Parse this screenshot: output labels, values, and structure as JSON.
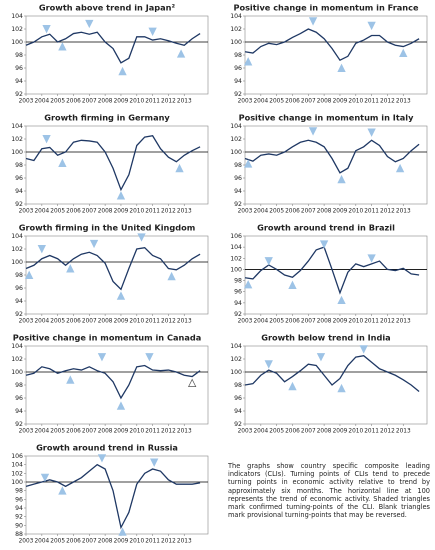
{
  "chart_data": [
    {
      "type": "line",
      "title": "Growth above trend in Japan²",
      "color": "#1f3864",
      "hline": 100,
      "x": [
        2003,
        2003.5,
        2004,
        2004.5,
        2005,
        2005.5,
        2006,
        2006.5,
        2007,
        2007.5,
        2008,
        2008.5,
        2009,
        2009.5,
        2010,
        2010.5,
        2011,
        2011.5,
        2012,
        2012.5,
        2013,
        2013.5,
        2014
      ],
      "values": [
        99.5,
        100,
        100.8,
        101.2,
        100,
        100.5,
        101.3,
        101.5,
        101.2,
        101.5,
        100,
        99,
        96.8,
        97.5,
        100.8,
        100.8,
        100.3,
        100.5,
        100.2,
        99.8,
        99.5,
        100.5,
        101.3
      ],
      "markers": [
        {
          "x": 2004.3,
          "y": 102,
          "kind": "peak"
        },
        {
          "x": 2005.3,
          "y": 99.3,
          "kind": "trough"
        },
        {
          "x": 2007,
          "y": 102.8,
          "kind": "peak"
        },
        {
          "x": 2009.1,
          "y": 95.5,
          "kind": "trough"
        },
        {
          "x": 2011,
          "y": 101.6,
          "kind": "peak"
        },
        {
          "x": 2012.8,
          "y": 98.2,
          "kind": "trough"
        }
      ],
      "xlim": [
        2003,
        2014.5
      ],
      "xticks": [
        2003,
        2004,
        2005,
        2006,
        2007,
        2008,
        2009,
        2010,
        2011,
        2012,
        2013
      ],
      "ylim": [
        92,
        104
      ],
      "yticks": [
        92,
        94,
        96,
        98,
        100,
        102,
        104
      ]
    },
    {
      "type": "line",
      "title": "Positive change in momentum in France",
      "color": "#1f3864",
      "hline": 100,
      "x": [
        2003,
        2003.5,
        2004,
        2004.5,
        2005,
        2005.5,
        2006,
        2006.5,
        2007,
        2007.5,
        2008,
        2008.5,
        2009,
        2009.5,
        2010,
        2010.5,
        2011,
        2011.5,
        2012,
        2012.5,
        2013,
        2013.5,
        2014
      ],
      "values": [
        98.5,
        98.3,
        99.3,
        99.8,
        99.6,
        100,
        100.7,
        101.3,
        102,
        101.5,
        100.5,
        99,
        97.2,
        97.8,
        99.8,
        100.3,
        101,
        101,
        100,
        99.5,
        99.3,
        99.8,
        100.5
      ],
      "markers": [
        {
          "x": 2003.2,
          "y": 97,
          "kind": "trough"
        },
        {
          "x": 2007.3,
          "y": 103.2,
          "kind": "peak"
        },
        {
          "x": 2009.1,
          "y": 96,
          "kind": "trough"
        },
        {
          "x": 2011,
          "y": 102.5,
          "kind": "peak"
        },
        {
          "x": 2013,
          "y": 98.3,
          "kind": "trough"
        }
      ],
      "xlim": [
        2003,
        2014.5
      ],
      "xticks": [
        2003,
        2004,
        2005,
        2006,
        2007,
        2008,
        2009,
        2010,
        2011,
        2012,
        2013
      ],
      "ylim": [
        92,
        104
      ],
      "yticks": [
        92,
        94,
        96,
        98,
        100,
        102,
        104
      ]
    },
    {
      "type": "line",
      "title": "Growth firming in Germany",
      "color": "#1f3864",
      "hline": 100,
      "x": [
        2003,
        2003.5,
        2004,
        2004.5,
        2005,
        2005.5,
        2006,
        2006.5,
        2007,
        2007.5,
        2008,
        2008.5,
        2009,
        2009.5,
        2010,
        2010.5,
        2011,
        2011.5,
        2012,
        2012.5,
        2013,
        2013.5,
        2014
      ],
      "values": [
        99,
        98.7,
        100.5,
        100.7,
        99.5,
        100,
        101.5,
        101.8,
        101.7,
        101.5,
        100,
        97.5,
        94.2,
        96.5,
        101,
        102.3,
        102.5,
        100.5,
        99.2,
        98.5,
        99.5,
        100.2,
        100.8
      ],
      "markers": [
        {
          "x": 2004.3,
          "y": 102,
          "kind": "peak"
        },
        {
          "x": 2005.3,
          "y": 98.3,
          "kind": "trough"
        },
        {
          "x": 2009,
          "y": 93.3,
          "kind": "trough"
        },
        {
          "x": 2012.7,
          "y": 97.5,
          "kind": "trough"
        }
      ],
      "xlim": [
        2003,
        2014.5
      ],
      "xticks": [
        2003,
        2004,
        2005,
        2006,
        2007,
        2008,
        2009,
        2010,
        2011,
        2012,
        2013
      ],
      "ylim": [
        92,
        104
      ],
      "yticks": [
        92,
        94,
        96,
        98,
        100,
        102,
        104
      ]
    },
    {
      "type": "line",
      "title": "Positive change in momentum in Italy",
      "color": "#1f3864",
      "hline": 100,
      "x": [
        2003,
        2003.5,
        2004,
        2004.5,
        2005,
        2005.5,
        2006,
        2006.5,
        2007,
        2007.5,
        2008,
        2008.5,
        2009,
        2009.5,
        2010,
        2010.5,
        2011,
        2011.5,
        2012,
        2012.5,
        2013,
        2013.5,
        2014
      ],
      "values": [
        99,
        98.6,
        99.5,
        99.7,
        99.5,
        100,
        100.8,
        101.5,
        101.8,
        101.5,
        100.8,
        99,
        96.8,
        97.5,
        100.2,
        100.8,
        101.8,
        101,
        99.3,
        98.5,
        99,
        100.2,
        101.2
      ],
      "markers": [
        {
          "x": 2003.2,
          "y": 98.2,
          "kind": "trough"
        },
        {
          "x": 2007.3,
          "y": 103.2,
          "kind": "peak"
        },
        {
          "x": 2009.1,
          "y": 95.8,
          "kind": "trough"
        },
        {
          "x": 2011,
          "y": 103,
          "kind": "peak"
        },
        {
          "x": 2012.8,
          "y": 97.5,
          "kind": "trough"
        }
      ],
      "xlim": [
        2003,
        2014.5
      ],
      "xticks": [
        2003,
        2004,
        2005,
        2006,
        2007,
        2008,
        2009,
        2010,
        2011,
        2012,
        2013
      ],
      "ylim": [
        92,
        104
      ],
      "yticks": [
        92,
        94,
        96,
        98,
        100,
        102,
        104
      ]
    },
    {
      "type": "line",
      "title": "Growth firming in the United Kingdom",
      "color": "#1f3864",
      "hline": 100,
      "x": [
        2003,
        2003.5,
        2004,
        2004.5,
        2005,
        2005.5,
        2006,
        2006.5,
        2007,
        2007.5,
        2008,
        2008.5,
        2009,
        2009.5,
        2010,
        2010.5,
        2011,
        2011.5,
        2012,
        2012.5,
        2013,
        2013.5,
        2014
      ],
      "values": [
        99,
        99.5,
        100.5,
        101,
        100.5,
        99.5,
        100.5,
        101.2,
        101.5,
        101,
        99.8,
        97,
        95.8,
        99,
        102,
        102.2,
        101,
        100.5,
        99,
        98.8,
        99.5,
        100.5,
        101.2
      ],
      "markers": [
        {
          "x": 2003.2,
          "y": 98,
          "kind": "trough"
        },
        {
          "x": 2004,
          "y": 102,
          "kind": "peak"
        },
        {
          "x": 2005.8,
          "y": 99,
          "kind": "trough"
        },
        {
          "x": 2007.3,
          "y": 102.8,
          "kind": "peak"
        },
        {
          "x": 2009,
          "y": 94.8,
          "kind": "trough"
        },
        {
          "x": 2010.3,
          "y": 103.8,
          "kind": "peak"
        },
        {
          "x": 2012.2,
          "y": 97.8,
          "kind": "trough"
        }
      ],
      "xlim": [
        2003,
        2014.5
      ],
      "xticks": [
        2003,
        2004,
        2005,
        2006,
        2007,
        2008,
        2009,
        2010,
        2011,
        2012,
        2013
      ],
      "ylim": [
        92,
        104
      ],
      "yticks": [
        92,
        94,
        96,
        98,
        100,
        102,
        104
      ]
    },
    {
      "type": "line",
      "title": "Growth around trend in Brazil",
      "color": "#1f3864",
      "hline": 100,
      "x": [
        2003,
        2003.5,
        2004,
        2004.5,
        2005,
        2005.5,
        2006,
        2006.5,
        2007,
        2007.5,
        2008,
        2008.5,
        2009,
        2009.5,
        2010,
        2010.5,
        2011,
        2011.5,
        2012,
        2012.5,
        2013,
        2013.5,
        2014
      ],
      "values": [
        98.5,
        98.3,
        99.8,
        100.8,
        100,
        99,
        98.6,
        99.8,
        101.5,
        103.5,
        104,
        100,
        95.8,
        99.5,
        101,
        100.5,
        101,
        101.5,
        100,
        99.8,
        100.2,
        99.2,
        99
      ],
      "markers": [
        {
          "x": 2003.2,
          "y": 97.3,
          "kind": "trough"
        },
        {
          "x": 2004.5,
          "y": 101.5,
          "kind": "peak"
        },
        {
          "x": 2006,
          "y": 97.2,
          "kind": "trough"
        },
        {
          "x": 2008,
          "y": 104.5,
          "kind": "peak"
        },
        {
          "x": 2009.1,
          "y": 94.5,
          "kind": "trough"
        },
        {
          "x": 2011,
          "y": 102,
          "kind": "peak"
        }
      ],
      "xlim": [
        2003,
        2014.5
      ],
      "xticks": [
        2003,
        2004,
        2005,
        2006,
        2007,
        2008,
        2009,
        2010,
        2011,
        2012,
        2013
      ],
      "ylim": [
        92,
        106
      ],
      "yticks": [
        92,
        94,
        96,
        98,
        100,
        102,
        104,
        106
      ]
    },
    {
      "type": "line",
      "title": "Positive change in momentum in Canada",
      "color": "#1f3864",
      "hline": 100,
      "x": [
        2003,
        2003.5,
        2004,
        2004.5,
        2005,
        2005.5,
        2006,
        2006.5,
        2007,
        2007.5,
        2008,
        2008.5,
        2009,
        2009.5,
        2010,
        2010.5,
        2011,
        2011.5,
        2012,
        2012.5,
        2013,
        2013.5,
        2014
      ],
      "values": [
        99.5,
        99.8,
        100.8,
        100.5,
        99.8,
        100.2,
        100.5,
        100.3,
        100.8,
        100.2,
        99.8,
        98.5,
        96,
        98,
        100.8,
        101,
        100.3,
        100.2,
        100.3,
        100,
        99.5,
        99.3,
        100.2
      ],
      "markers": [
        {
          "x": 2005.8,
          "y": 98.8,
          "kind": "trough"
        },
        {
          "x": 2007.8,
          "y": 102.3,
          "kind": "peak"
        },
        {
          "x": 2009,
          "y": 94.8,
          "kind": "trough"
        },
        {
          "x": 2010.8,
          "y": 102.3,
          "kind": "peak"
        },
        {
          "x": 2013.5,
          "y": 98.3,
          "kind": "trough",
          "provisional": true
        }
      ],
      "xlim": [
        2003,
        2014.5
      ],
      "xticks": [
        2003,
        2004,
        2005,
        2006,
        2007,
        2008,
        2009,
        2010,
        2011,
        2012,
        2013
      ],
      "ylim": [
        92,
        104
      ],
      "yticks": [
        92,
        94,
        96,
        98,
        100,
        102,
        104
      ]
    },
    {
      "type": "line",
      "title": "Growth below trend in India",
      "color": "#1f3864",
      "hline": 100,
      "x": [
        2003,
        2003.5,
        2004,
        2004.5,
        2005,
        2005.5,
        2006,
        2006.5,
        2007,
        2007.5,
        2008,
        2008.5,
        2009,
        2009.5,
        2010,
        2010.5,
        2011,
        2011.5,
        2012,
        2012.5,
        2013,
        2013.5,
        2014
      ],
      "values": [
        98,
        98.2,
        99.5,
        100.3,
        99.8,
        98.5,
        99.3,
        100.2,
        101.2,
        101,
        99.5,
        98,
        99,
        101,
        102.3,
        102.5,
        101.5,
        100.5,
        100,
        99.5,
        98.8,
        98,
        97
      ],
      "markers": [
        {
          "x": 2004.5,
          "y": 101.2,
          "kind": "peak"
        },
        {
          "x": 2006,
          "y": 97.8,
          "kind": "trough"
        },
        {
          "x": 2007.8,
          "y": 102.3,
          "kind": "peak"
        },
        {
          "x": 2009.1,
          "y": 97.5,
          "kind": "trough"
        },
        {
          "x": 2010.5,
          "y": 103.5,
          "kind": "peak"
        }
      ],
      "xlim": [
        2003,
        2014.5
      ],
      "xticks": [
        2003,
        2004,
        2005,
        2006,
        2007,
        2008,
        2009,
        2010,
        2011,
        2012,
        2013
      ],
      "ylim": [
        92,
        104
      ],
      "yticks": [
        92,
        94,
        96,
        98,
        100,
        102,
        104
      ]
    },
    {
      "type": "line",
      "title": "Growth around trend in Russia",
      "color": "#1f3864",
      "hline": 100,
      "x": [
        2003,
        2003.5,
        2004,
        2004.5,
        2005,
        2005.5,
        2006,
        2006.5,
        2007,
        2007.5,
        2008,
        2008.5,
        2009,
        2009.5,
        2010,
        2010.5,
        2011,
        2011.5,
        2012,
        2012.5,
        2013,
        2013.5,
        2014
      ],
      "values": [
        99,
        99.5,
        100,
        100.5,
        100,
        99,
        100,
        101,
        102.5,
        104,
        103,
        98,
        89.5,
        93,
        99.5,
        102,
        103,
        102.5,
        100.5,
        99.5,
        99.5,
        99.5,
        99.8
      ],
      "markers": [
        {
          "x": 2004.2,
          "y": 101,
          "kind": "peak"
        },
        {
          "x": 2005.3,
          "y": 98,
          "kind": "trough"
        },
        {
          "x": 2007.8,
          "y": 105.5,
          "kind": "peak"
        },
        {
          "x": 2009.1,
          "y": 88.5,
          "kind": "trough"
        },
        {
          "x": 2011.1,
          "y": 104.5,
          "kind": "peak"
        }
      ],
      "xlim": [
        2003,
        2014.5
      ],
      "xticks": [
        2003,
        2004,
        2005,
        2006,
        2007,
        2008,
        2009,
        2010,
        2011,
        2012,
        2013
      ],
      "ylim": [
        88,
        106
      ],
      "yticks": [
        88,
        90,
        92,
        94,
        96,
        98,
        100,
        102,
        104,
        106
      ]
    }
  ],
  "note": "The graphs show country specific composite leading indicators (CLIs). Turning points of CLIs tend to precede turning points in economic activity relative to trend by approximately six months. The horizontal line at 100 represents the trend of economic activity. Shaded triangles mark confirmed turning-points of the CLI. Blank triangles mark provisional turning-points that may be reversed."
}
